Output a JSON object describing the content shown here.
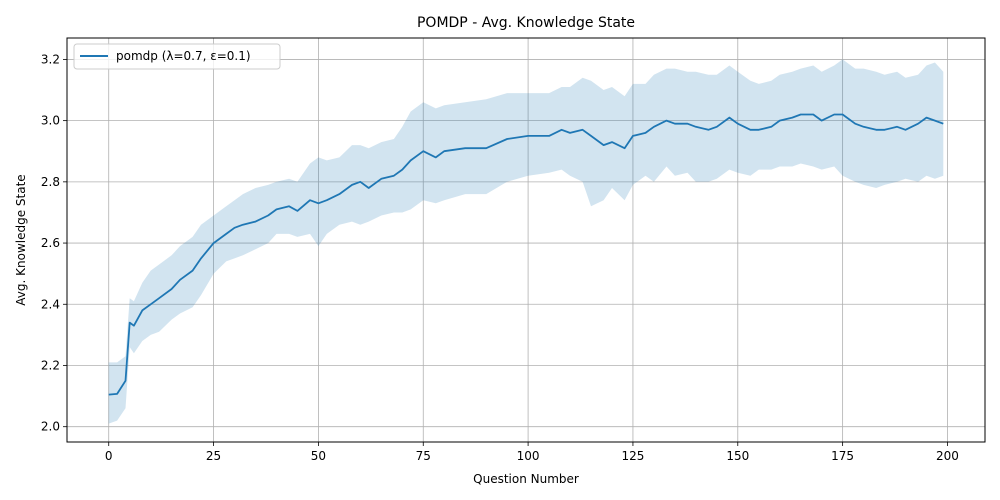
{
  "chart_data": {
    "type": "line",
    "title": "POMDP - Avg. Knowledge State",
    "xlabel": "Question Number",
    "ylabel": "Avg. Knowledge State",
    "xlim": [
      -9.95,
      208.95
    ],
    "ylim": [
      1.95,
      3.27
    ],
    "xticks": [
      0,
      25,
      50,
      75,
      100,
      125,
      150,
      175,
      200
    ],
    "yticks": [
      2.0,
      2.2,
      2.4,
      2.6,
      2.8,
      3.0,
      3.2
    ],
    "ytick_labels": [
      "2.0",
      "2.2",
      "2.4",
      "2.6",
      "2.8",
      "3.0",
      "3.2"
    ],
    "grid": true,
    "legend_position": "top-left",
    "colors": {
      "line": "#1f77b4",
      "band": "#1f77b4"
    },
    "band_opacity": 0.2,
    "series": [
      {
        "name": "pomdp (λ=0.7, ε=0.1)",
        "x": [
          0,
          2,
          4,
          5,
          6,
          8,
          10,
          12,
          15,
          17,
          20,
          22,
          25,
          28,
          30,
          32,
          35,
          38,
          40,
          43,
          45,
          48,
          50,
          52,
          55,
          58,
          60,
          62,
          65,
          68,
          70,
          72,
          75,
          78,
          80,
          85,
          90,
          95,
          100,
          105,
          108,
          110,
          113,
          115,
          118,
          120,
          123,
          125,
          128,
          130,
          133,
          135,
          138,
          140,
          143,
          145,
          148,
          150,
          153,
          155,
          158,
          160,
          163,
          165,
          168,
          170,
          173,
          175,
          178,
          180,
          183,
          185,
          188,
          190,
          193,
          195,
          197,
          199
        ],
        "values": [
          2.105,
          2.107,
          2.15,
          2.34,
          2.33,
          2.38,
          2.4,
          2.42,
          2.45,
          2.48,
          2.51,
          2.55,
          2.6,
          2.63,
          2.65,
          2.66,
          2.67,
          2.69,
          2.71,
          2.72,
          2.705,
          2.74,
          2.73,
          2.74,
          2.76,
          2.79,
          2.8,
          2.78,
          2.81,
          2.82,
          2.84,
          2.87,
          2.9,
          2.88,
          2.9,
          2.91,
          2.91,
          2.94,
          2.95,
          2.95,
          2.97,
          2.96,
          2.97,
          2.95,
          2.92,
          2.93,
          2.91,
          2.95,
          2.96,
          2.98,
          3.0,
          2.99,
          2.99,
          2.98,
          2.97,
          2.98,
          3.01,
          2.99,
          2.97,
          2.97,
          2.98,
          3.0,
          3.01,
          3.02,
          3.02,
          3.0,
          3.02,
          3.02,
          2.99,
          2.98,
          2.97,
          2.97,
          2.98,
          2.97,
          2.99,
          3.01,
          3.0,
          2.99
        ],
        "lower": [
          2.01,
          2.02,
          2.06,
          2.26,
          2.24,
          2.28,
          2.3,
          2.31,
          2.35,
          2.37,
          2.39,
          2.43,
          2.5,
          2.54,
          2.55,
          2.56,
          2.58,
          2.6,
          2.63,
          2.63,
          2.62,
          2.63,
          2.59,
          2.63,
          2.66,
          2.67,
          2.66,
          2.67,
          2.69,
          2.7,
          2.7,
          2.71,
          2.74,
          2.73,
          2.74,
          2.76,
          2.76,
          2.8,
          2.82,
          2.83,
          2.84,
          2.82,
          2.8,
          2.72,
          2.74,
          2.78,
          2.74,
          2.79,
          2.82,
          2.8,
          2.85,
          2.82,
          2.83,
          2.8,
          2.8,
          2.81,
          2.84,
          2.83,
          2.82,
          2.84,
          2.84,
          2.85,
          2.85,
          2.86,
          2.85,
          2.84,
          2.85,
          2.82,
          2.8,
          2.79,
          2.78,
          2.79,
          2.8,
          2.81,
          2.8,
          2.82,
          2.81,
          2.82
        ],
        "upper": [
          2.21,
          2.21,
          2.23,
          2.42,
          2.41,
          2.47,
          2.51,
          2.53,
          2.56,
          2.59,
          2.62,
          2.66,
          2.69,
          2.72,
          2.74,
          2.76,
          2.78,
          2.79,
          2.8,
          2.81,
          2.8,
          2.86,
          2.88,
          2.87,
          2.88,
          2.92,
          2.92,
          2.91,
          2.93,
          2.94,
          2.98,
          3.03,
          3.06,
          3.04,
          3.05,
          3.06,
          3.07,
          3.09,
          3.09,
          3.09,
          3.11,
          3.11,
          3.14,
          3.13,
          3.1,
          3.11,
          3.08,
          3.12,
          3.12,
          3.15,
          3.17,
          3.17,
          3.16,
          3.16,
          3.15,
          3.15,
          3.18,
          3.16,
          3.13,
          3.12,
          3.13,
          3.15,
          3.16,
          3.17,
          3.18,
          3.16,
          3.18,
          3.2,
          3.17,
          3.17,
          3.16,
          3.15,
          3.16,
          3.14,
          3.15,
          3.18,
          3.19,
          3.16
        ]
      }
    ]
  }
}
